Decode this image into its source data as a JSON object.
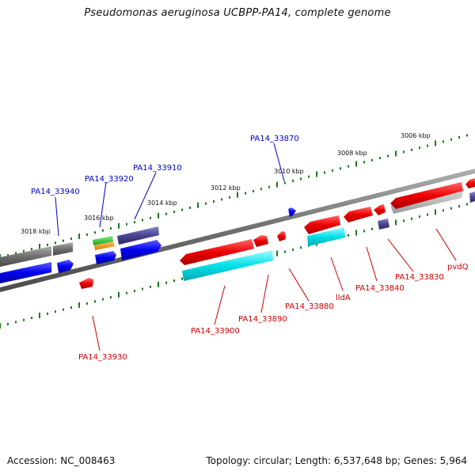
{
  "title": "Pseudomonas aeruginosa UCBPP-PA14, complete genome",
  "footer": {
    "accession": "Accession: NC_008463",
    "topology": "Topology: circular; Length: 6,537,648 bp; Genes: 5,964"
  },
  "scale_labels": [
    "3018 kbp",
    "3016 kbp",
    "3014 kbp",
    "3012 kbp",
    "3010 kbp",
    "3008 kbp",
    "3006 kbp"
  ],
  "genes": {
    "forward_labels": [
      "PA14_33940",
      "PA14_33920",
      "PA14_33910",
      "PA14_33870"
    ],
    "reverse_labels": [
      "PA14_33930",
      "PA14_33900",
      "PA14_33890",
      "PA14_33880",
      "lldA",
      "PA14_33840",
      "PA14_33830",
      "pvdQ"
    ]
  },
  "colors": {
    "forward_gene": "#0000ee",
    "reverse_gene": "#ee0000",
    "forward_label": "#0000cc",
    "reverse_label": "#cc0000",
    "backbone": "#808080",
    "tick": "#1a7a1a"
  }
}
